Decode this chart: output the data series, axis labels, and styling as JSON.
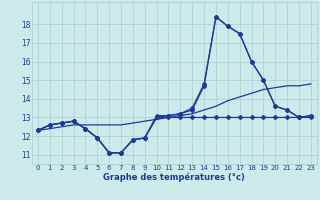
{
  "title": "Graphe des températures (°c)",
  "background_color": "#cceaea",
  "grid_color": "#aacece",
  "line_color": "#1a3a9e",
  "xlim": [
    -0.5,
    23.5
  ],
  "ylim": [
    10.5,
    19.2
  ],
  "xticks": [
    0,
    1,
    2,
    3,
    4,
    5,
    6,
    7,
    8,
    9,
    10,
    11,
    12,
    13,
    14,
    15,
    16,
    17,
    18,
    19,
    20,
    21,
    22,
    23
  ],
  "yticks": [
    11,
    12,
    13,
    14,
    15,
    16,
    17,
    18
  ],
  "hours": [
    0,
    1,
    2,
    3,
    4,
    5,
    6,
    7,
    8,
    9,
    10,
    11,
    12,
    13,
    14,
    15,
    16,
    17,
    18,
    19,
    20,
    21,
    22,
    23
  ],
  "cur": [
    12.3,
    12.6,
    12.7,
    12.8,
    12.4,
    11.9,
    11.1,
    11.1,
    11.8,
    11.9,
    13.0,
    13.1,
    13.2,
    13.4,
    14.7,
    18.4,
    17.9,
    17.5,
    16.0,
    15.0,
    13.6,
    13.4,
    13.0,
    13.1
  ],
  "min": [
    12.3,
    12.6,
    12.7,
    12.8,
    12.4,
    11.9,
    11.1,
    11.1,
    11.8,
    11.9,
    13.0,
    13.0,
    13.0,
    13.0,
    13.0,
    13.0,
    13.0,
    13.0,
    13.0,
    13.0,
    13.0,
    13.0,
    13.0,
    13.0
  ],
  "max": [
    12.3,
    12.6,
    12.7,
    12.8,
    12.4,
    11.9,
    11.1,
    11.1,
    11.8,
    11.9,
    13.1,
    13.1,
    13.2,
    13.5,
    14.8,
    18.4,
    17.9,
    17.5,
    16.0,
    15.0,
    13.6,
    13.4,
    13.0,
    13.1
  ],
  "avg": [
    12.3,
    12.4,
    12.5,
    12.6,
    12.6,
    12.6,
    12.6,
    12.6,
    12.7,
    12.8,
    12.9,
    13.0,
    13.1,
    13.2,
    13.4,
    13.6,
    13.9,
    14.1,
    14.3,
    14.5,
    14.6,
    14.7,
    14.7,
    14.8
  ]
}
